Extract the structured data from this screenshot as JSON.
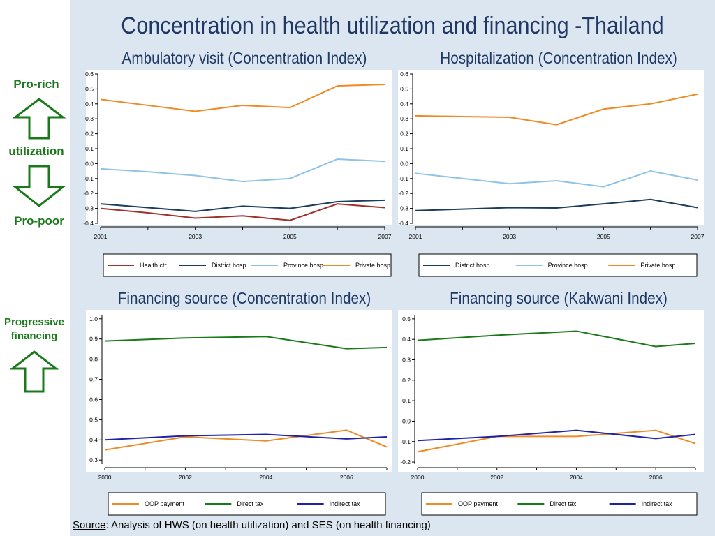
{
  "slide": {
    "title": "Concentration in health utilization and financing -Thailand",
    "footnote_label": "Source",
    "footnote_text": ": Analysis of HWS (on health utilization) and SES (on health financing)"
  },
  "side_labels": {
    "pro_rich": "Pro-rich",
    "utilization": "utilization",
    "pro_poor": "Pro-poor",
    "progressive_financing_1": "Progressive",
    "progressive_financing_2": "financing"
  },
  "colors": {
    "health_ctr": "#a0302b",
    "district": "#1b3d5c",
    "province": "#8ec3e6",
    "private": "#f08a24",
    "oop": "#f08a24",
    "direct": "#1a7a1a",
    "indirect": "#1f22a8",
    "arrow": "#1a7a1a",
    "title": "#1f3864"
  },
  "chart_data": [
    {
      "type": "line",
      "title": "Ambulatory visit (Concentration Index)",
      "x": [
        2001,
        2002,
        2003,
        2004,
        2005,
        2006,
        2007
      ],
      "xticks": [
        "2001",
        "2003",
        "2005",
        "2007"
      ],
      "yticks": [
        "0.6",
        "0.5",
        "0.4",
        "0.3",
        "0.2",
        "0.1",
        "0.0",
        "-0.1",
        "-0.2",
        "-0.3",
        "-0.4"
      ],
      "ylim": [
        -0.4,
        0.6
      ],
      "series": [
        {
          "name": "Health ctr.",
          "color_key": "health_ctr",
          "values": [
            -0.3,
            -0.33,
            -0.365,
            -0.35,
            -0.38,
            -0.27,
            -0.295
          ]
        },
        {
          "name": "District hosp.",
          "color_key": "district",
          "values": [
            -0.27,
            -0.295,
            -0.32,
            -0.285,
            -0.3,
            -0.255,
            -0.245
          ]
        },
        {
          "name": "Province hosp.",
          "color_key": "province",
          "values": [
            -0.035,
            -0.055,
            -0.08,
            -0.12,
            -0.1,
            0.03,
            0.015
          ]
        },
        {
          "name": "Private hosp.",
          "color_key": "private",
          "values": [
            0.43,
            0.39,
            0.35,
            0.39,
            0.375,
            0.52,
            0.53
          ]
        }
      ]
    },
    {
      "type": "line",
      "title": "Hospitalization (Concentration Index)",
      "x": [
        2001,
        2002,
        2003,
        2004,
        2005,
        2006,
        2007
      ],
      "xticks": [
        "2001",
        "2003",
        "2005",
        "2007"
      ],
      "yticks": [
        "0.6",
        "0.5",
        "0.4",
        "0.3",
        "0.2",
        "0.1",
        "0.0",
        "-0.1",
        "-0.2",
        "-0.3",
        "-0.4"
      ],
      "ylim": [
        -0.4,
        0.6
      ],
      "series": [
        {
          "name": "District hosp.",
          "color_key": "district",
          "values": [
            -0.315,
            -0.305,
            -0.295,
            -0.297,
            -0.27,
            -0.24,
            -0.295
          ]
        },
        {
          "name": "Province hosp.",
          "color_key": "province",
          "values": [
            -0.065,
            -0.1,
            -0.135,
            -0.115,
            -0.155,
            -0.05,
            -0.11
          ]
        },
        {
          "name": "Private hosp",
          "color_key": "private",
          "values": [
            0.32,
            0.315,
            0.31,
            0.26,
            0.365,
            0.4,
            0.465
          ]
        }
      ]
    },
    {
      "type": "line",
      "title": "Financing source (Concentration Index)",
      "x": [
        2000,
        2002,
        2004,
        2006,
        2007
      ],
      "xticks": [
        "2000",
        "2002",
        "2004",
        "2006"
      ],
      "yticks": [
        "1.0",
        "0.9",
        "0.8",
        "0.7",
        "0.6",
        "0.5",
        "0.4",
        "0.3"
      ],
      "ylim": [
        0.28,
        1.02
      ],
      "series": [
        {
          "name": "OOP payment",
          "color_key": "oop",
          "values": [
            0.35,
            0.415,
            0.395,
            0.448,
            0.365
          ]
        },
        {
          "name": "Direct tax",
          "color_key": "direct",
          "values": [
            0.89,
            0.905,
            0.912,
            0.852,
            0.858
          ]
        },
        {
          "name": "Indirect tax",
          "color_key": "indirect",
          "values": [
            0.4,
            0.42,
            0.427,
            0.405,
            0.415
          ]
        }
      ]
    },
    {
      "type": "line",
      "title": "Financing source (Kakwani Index)",
      "x": [
        2000,
        2002,
        2004,
        2006,
        2007
      ],
      "xticks": [
        "2000",
        "2002",
        "2004",
        "2006"
      ],
      "yticks": [
        "0.5",
        "0.4",
        "0.3",
        "0.2",
        "0.1",
        "0.0",
        "-0.1",
        "-0.2"
      ],
      "ylim": [
        -0.21,
        0.52
      ],
      "series": [
        {
          "name": "OOP payment",
          "color_key": "oop",
          "values": [
            -0.15,
            -0.075,
            -0.075,
            -0.045,
            -0.11
          ]
        },
        {
          "name": "Direct tax",
          "color_key": "direct",
          "values": [
            0.395,
            0.42,
            0.44,
            0.365,
            0.38
          ]
        },
        {
          "name": "Indirect tax",
          "color_key": "indirect",
          "values": [
            -0.095,
            -0.075,
            -0.045,
            -0.085,
            -0.065
          ]
        }
      ]
    }
  ]
}
